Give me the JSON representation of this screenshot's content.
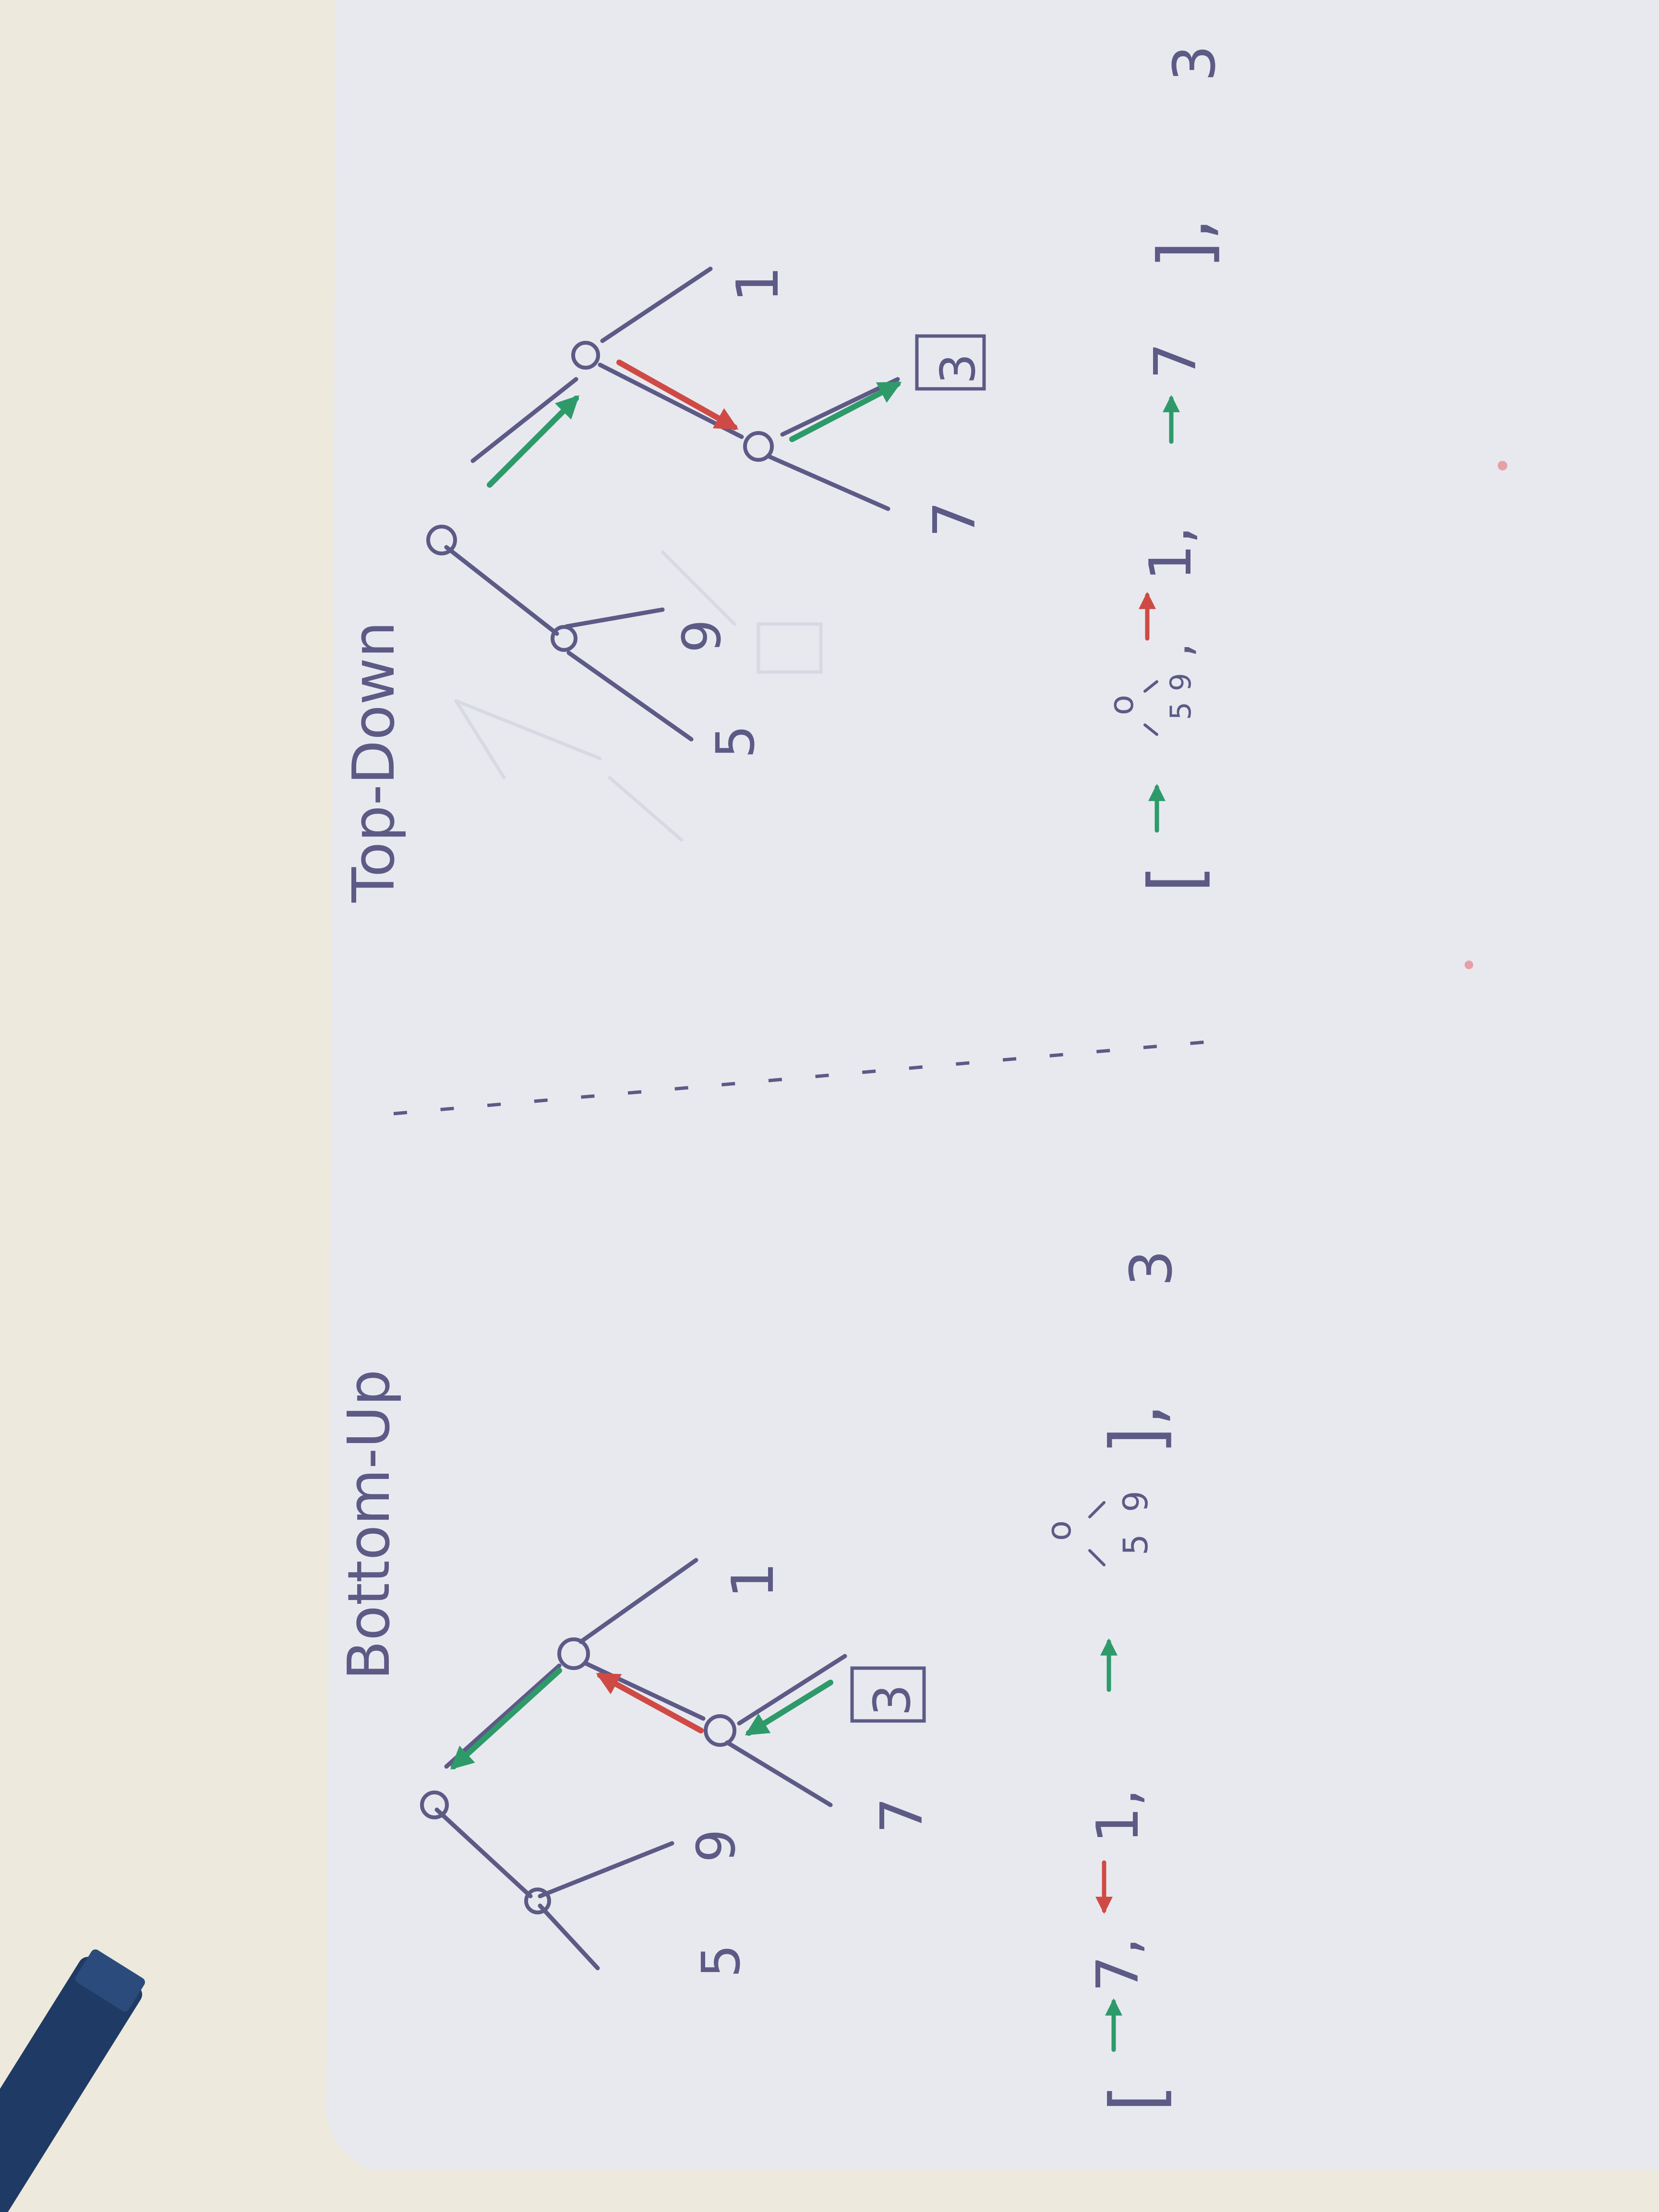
{
  "colors": {
    "desk": "#ede9dc",
    "paper": "#e9eaf0",
    "ink": "#5d5a86",
    "green": "#2e9a6a",
    "red": "#cf4a45",
    "ghost": "#d7d9e3",
    "marker": "#1f3a64"
  },
  "bottom_up": {
    "title": "Bottom-Up",
    "leaves": [
      "5",
      "9",
      "7",
      "3",
      "1"
    ],
    "sequence": {
      "open": "[",
      "item1": "7,",
      "item2": "1,",
      "item3_subtree_root": "o",
      "item3_leaves": [
        "5",
        "9"
      ],
      "close": "],",
      "tail": "3"
    }
  },
  "top_down": {
    "title": "Top-Down",
    "leaves": [
      "5",
      "9",
      "7",
      "3",
      "1"
    ],
    "sequence": {
      "open": "[",
      "item1_subtree_root": "o",
      "item1_leaves": [
        "5",
        "9"
      ],
      "item1_sep": ",",
      "item2": "1,",
      "item3": "7",
      "close": "],",
      "tail": "3"
    }
  },
  "divider": "dashed-line"
}
